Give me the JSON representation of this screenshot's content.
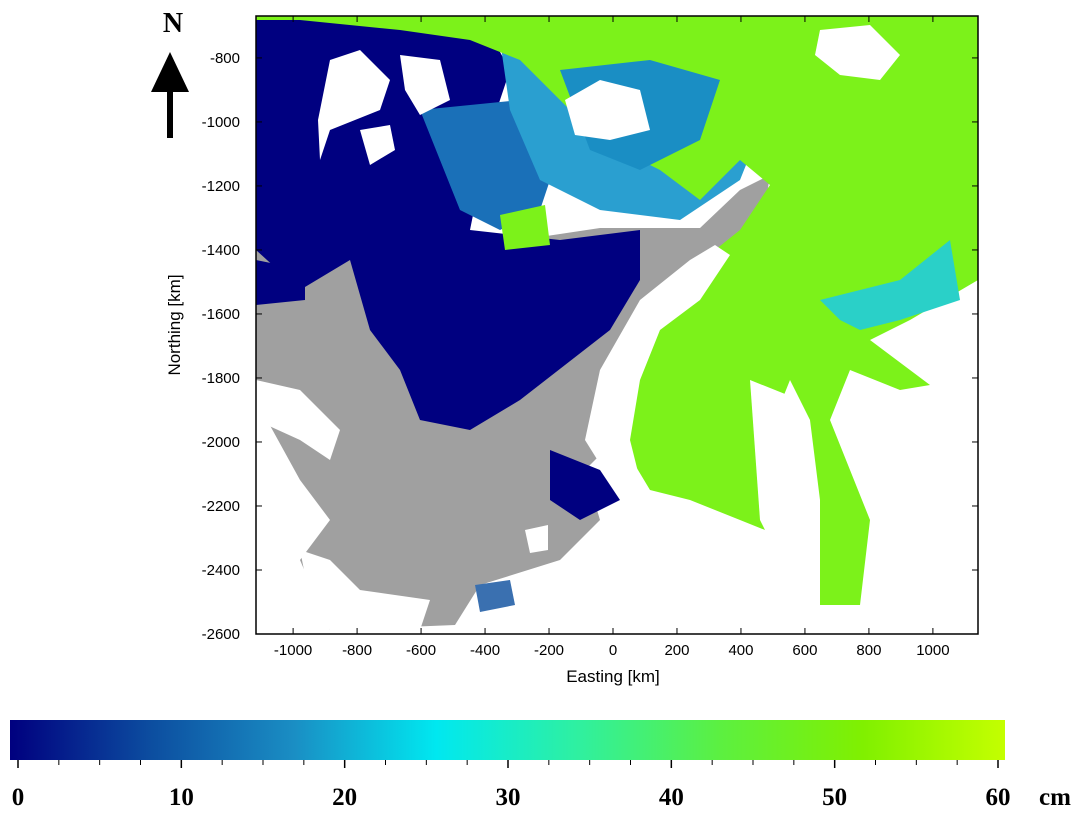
{
  "map": {
    "north_label": "N",
    "xlabel": "Easting [km]",
    "ylabel": "Northing [km]",
    "xlim": [
      -1116,
      1141
    ],
    "xticks": [
      -1000,
      -800,
      -600,
      -400,
      -200,
      0,
      200,
      400,
      600,
      800,
      1000
    ],
    "ylim": [
      -2600,
      -669
    ],
    "yticks": [
      -800,
      -1000,
      -1200,
      -1400,
      -1600,
      -1800,
      -2000,
      -2200,
      -2400,
      -2600
    ],
    "colorbar": {
      "lim": [
        0,
        60
      ],
      "ticks": [
        0,
        10,
        20,
        30,
        40,
        50,
        60
      ],
      "minor_ticks": [
        2.5,
        5,
        7.5,
        12.5,
        15,
        17.5,
        22.5,
        25,
        27.5,
        32.5,
        35,
        37.5,
        42.5,
        45,
        47.5,
        52.5,
        55,
        57.5
      ],
      "unit": "cm",
      "colors": [
        "#00007f",
        "#0c4ea0",
        "#1a8ec4",
        "#00e8f0",
        "#2ff0a0",
        "#5cf040",
        "#80f000",
        "#c4ff00"
      ]
    }
  }
}
